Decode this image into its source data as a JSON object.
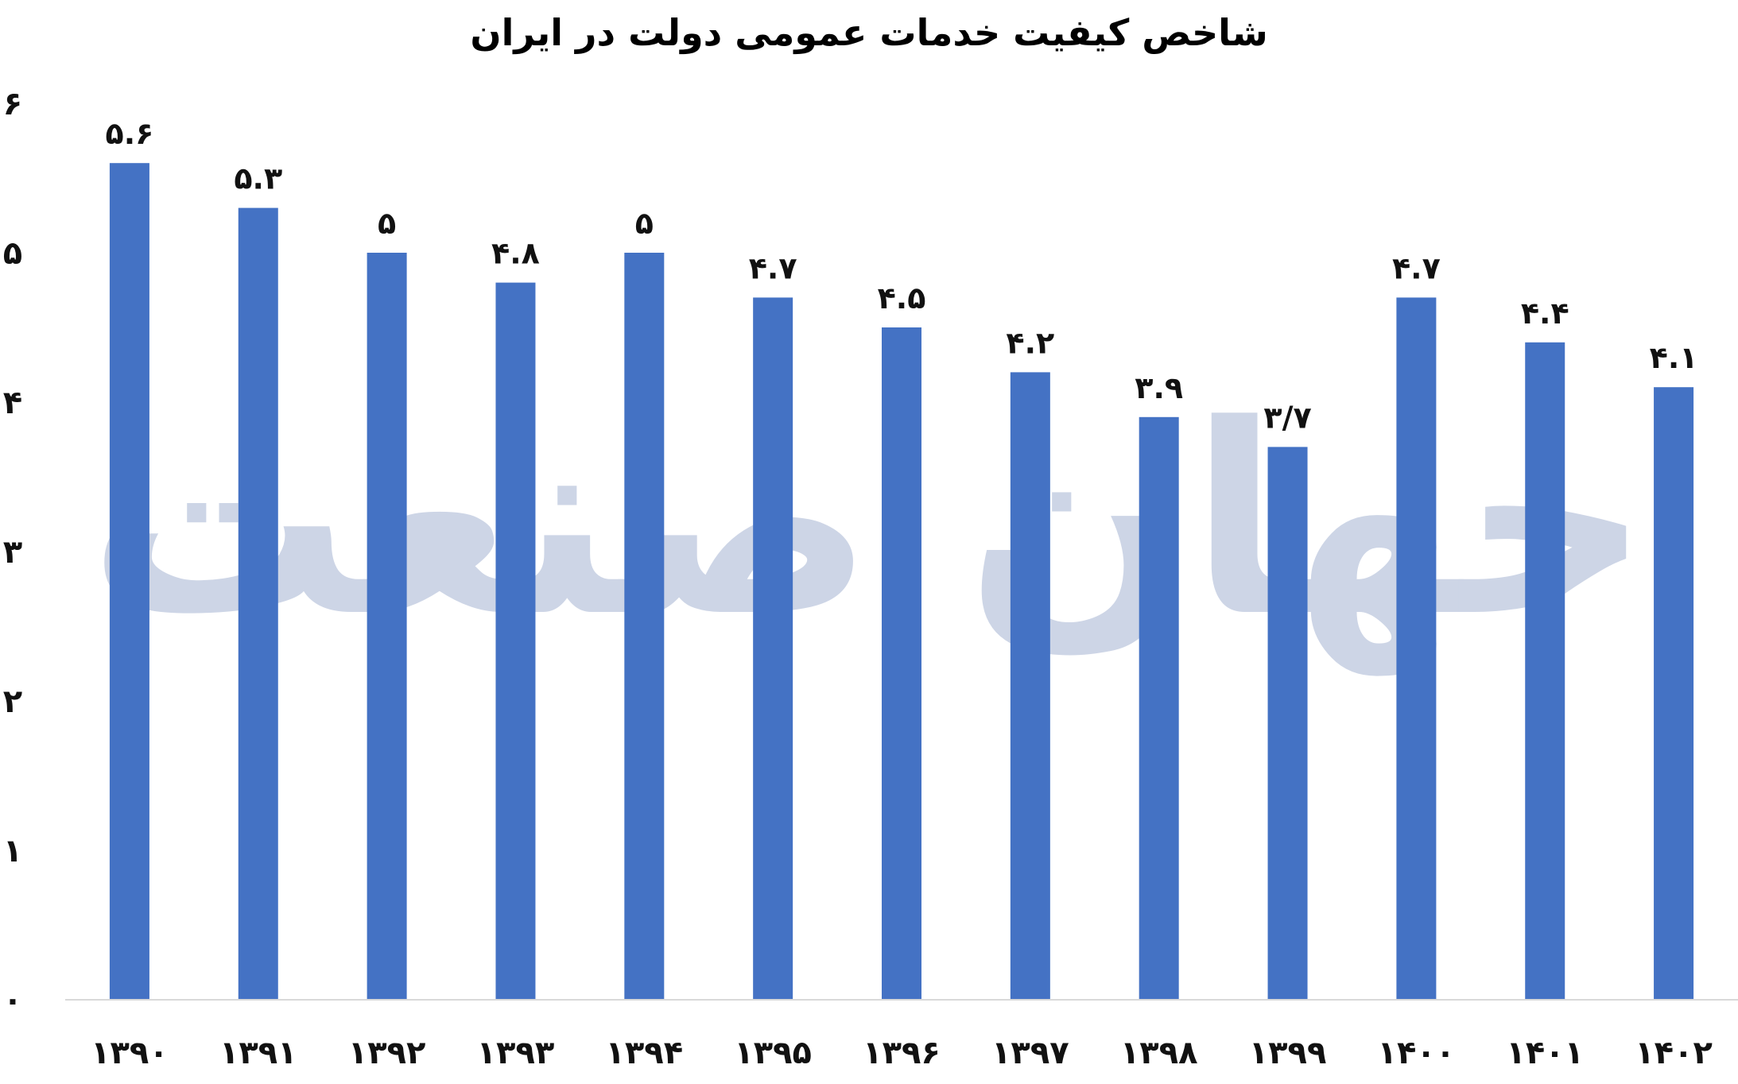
{
  "chart_data": {
    "type": "bar",
    "title": "شاخص کیفیت خدمات عمومی دولت در ایران",
    "categories": [
      "۱۳۹۰",
      "۱۳۹۱",
      "۱۳۹۲",
      "۱۳۹۳",
      "۱۳۹۴",
      "۱۳۹۵",
      "۱۳۹۶",
      "۱۳۹۷",
      "۱۳۹۸",
      "۱۳۹۹",
      "۱۴۰۰",
      "۱۴۰۱",
      "۱۴۰۲"
    ],
    "values": [
      5.6,
      5.3,
      5,
      4.8,
      5,
      4.7,
      4.5,
      4.2,
      3.9,
      3.7,
      4.7,
      4.4,
      4.1
    ],
    "data_labels": [
      "۵.۶",
      "۵.۳",
      "۵",
      "۴.۸",
      "۵",
      "۴.۷",
      "۴.۵",
      "۴.۲",
      "۳.۹",
      "۳/۷",
      "۴.۷",
      "۴.۴",
      "۴.۱"
    ],
    "yticks": [
      0,
      1,
      2,
      3,
      4,
      5,
      6
    ],
    "ytick_labels": [
      "۰",
      "۱",
      "۲",
      "۳",
      "۴",
      "۵",
      "۶"
    ],
    "ylim": [
      0,
      6
    ],
    "xlabel": "",
    "ylabel": "",
    "grid": false,
    "bar_color": "#4472c4",
    "axis_color": "#d9d9d9",
    "watermark": "جهان صنعت",
    "watermark_color": "#cdd5e6"
  }
}
